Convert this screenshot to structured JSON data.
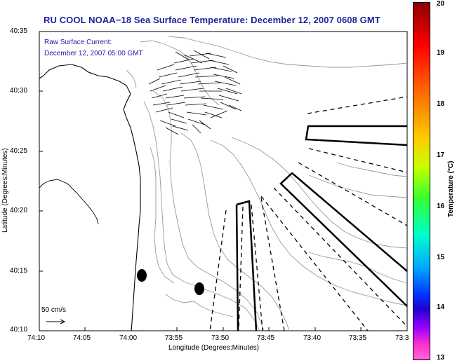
{
  "title": "RU COOL  NOAA−18  Sea Surface Temperature:  December 12, 2007 0608 GMT",
  "current_label_1": "Raw Surface Current:",
  "current_label_2": "December 12, 2007 05:00 GMT",
  "scale_label": "50 cm/s",
  "ylabel": "Latitude (Degrees:Minutes)",
  "xlabel": "Longitude (Degrees:Minutes)",
  "lat_ticks": [
    "40:35",
    "40:30",
    "40:25",
    "40:20",
    "40:15",
    "40:10"
  ],
  "lon_ticks": [
    "74:10",
    "74:05",
    "74:00",
    "73:55",
    "73:50",
    "73:45",
    "73:40",
    "73:35",
    "73:3"
  ],
  "colorbar": {
    "title": "Temperature (°C)",
    "ticks": [
      "20",
      "19",
      "18",
      "17",
      "16",
      "15",
      "14",
      "13"
    ],
    "range": [
      13,
      20
    ]
  },
  "colors": {
    "label_blue": "#1f1f9f",
    "contour_gray": "#999999"
  }
}
